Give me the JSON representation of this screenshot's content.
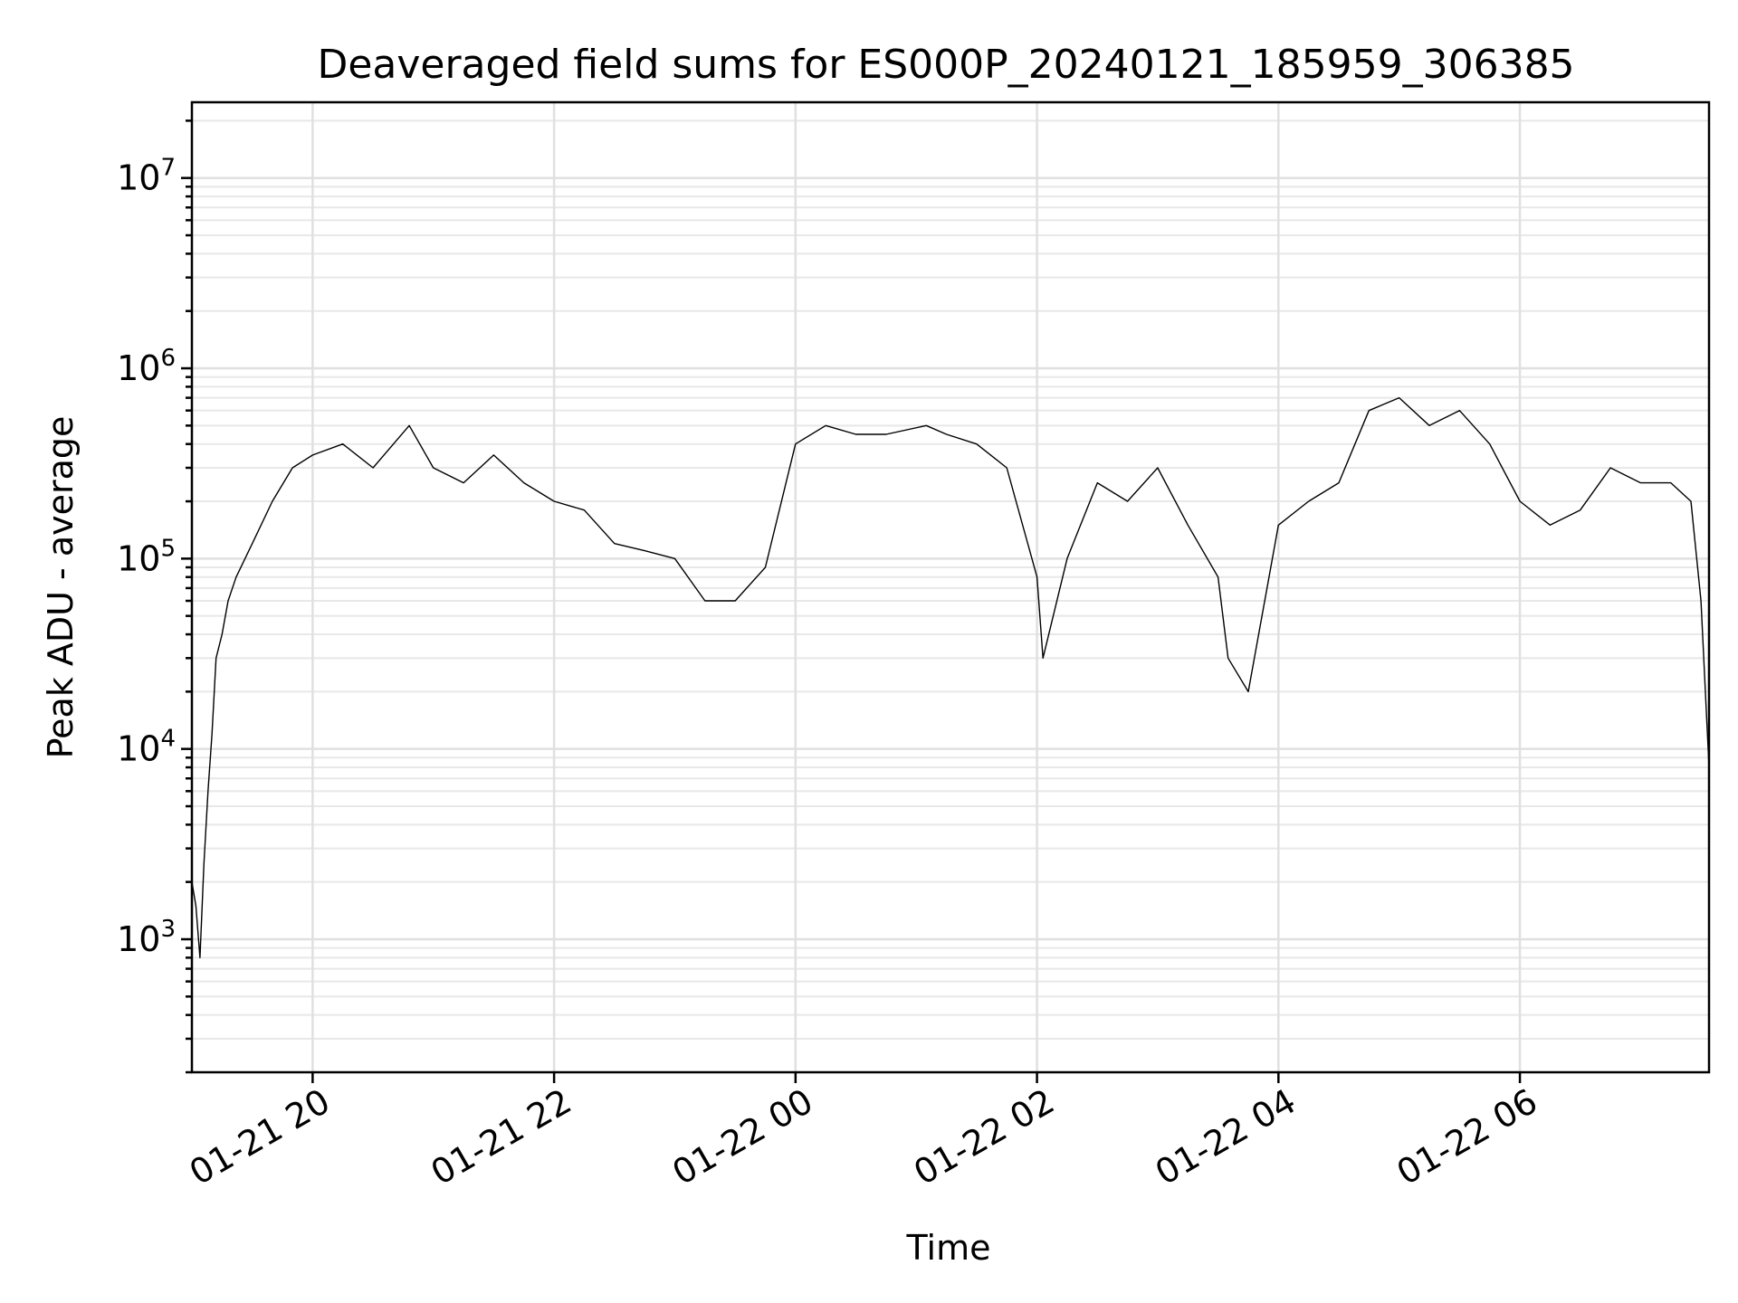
{
  "chart_data": {
    "type": "line",
    "title": "Deaveraged field sums for ES000P_20240121_185959_306385",
    "xlabel": "Time",
    "ylabel": "Peak ADU - average",
    "yscale": "log",
    "ylim": [
      200,
      25000000
    ],
    "xlim": [
      "2024-01-21 19:00",
      "2024-01-22 07:34"
    ],
    "x_ticks": [
      "01-21 20",
      "01-21 22",
      "01-22 00",
      "01-22 02",
      "01-22 04",
      "01-22 06"
    ],
    "x_tick_values": [
      "2024-01-21 20:00",
      "2024-01-21 22:00",
      "2024-01-22 00:00",
      "2024-01-22 02:00",
      "2024-01-22 04:00",
      "2024-01-22 06:00"
    ],
    "y_ticks": [
      {
        "value": 1000,
        "base": "10",
        "exp": "3"
      },
      {
        "value": 10000,
        "base": "10",
        "exp": "4"
      },
      {
        "value": 100000,
        "base": "10",
        "exp": "5"
      },
      {
        "value": 1000000,
        "base": "10",
        "exp": "6"
      },
      {
        "value": 10000000,
        "base": "10",
        "exp": "7"
      }
    ],
    "grid": true,
    "line_color": "#000000",
    "series": [
      {
        "x": [
          "2024-01-21 19:00",
          "2024-01-21 19:02",
          "2024-01-21 19:04",
          "2024-01-21 19:06",
          "2024-01-21 19:08",
          "2024-01-21 19:10",
          "2024-01-21 19:12",
          "2024-01-21 19:15",
          "2024-01-21 19:18",
          "2024-01-21 19:22",
          "2024-01-21 19:30",
          "2024-01-21 19:40",
          "2024-01-21 19:50",
          "2024-01-21 20:00",
          "2024-01-21 20:15",
          "2024-01-21 20:30",
          "2024-01-21 20:48",
          "2024-01-21 21:00",
          "2024-01-21 21:15",
          "2024-01-21 21:30",
          "2024-01-21 21:45",
          "2024-01-21 22:00",
          "2024-01-21 22:15",
          "2024-01-21 22:30",
          "2024-01-21 22:45",
          "2024-01-21 23:00",
          "2024-01-21 23:15",
          "2024-01-21 23:30",
          "2024-01-21 23:45",
          "2024-01-22 00:00",
          "2024-01-22 00:15",
          "2024-01-22 00:30",
          "2024-01-22 00:45",
          "2024-01-22 01:05",
          "2024-01-22 01:15",
          "2024-01-22 01:30",
          "2024-01-22 01:45",
          "2024-01-22 02:00",
          "2024-01-22 02:03",
          "2024-01-22 02:15",
          "2024-01-22 02:30",
          "2024-01-22 02:45",
          "2024-01-22 03:00",
          "2024-01-22 03:15",
          "2024-01-22 03:30",
          "2024-01-22 03:35",
          "2024-01-22 03:45",
          "2024-01-22 04:00",
          "2024-01-22 04:15",
          "2024-01-22 04:30",
          "2024-01-22 04:45",
          "2024-01-22 05:00",
          "2024-01-22 05:15",
          "2024-01-22 05:30",
          "2024-01-22 05:45",
          "2024-01-22 06:00",
          "2024-01-22 06:15",
          "2024-01-22 06:30",
          "2024-01-22 06:45",
          "2024-01-22 07:00",
          "2024-01-22 07:15",
          "2024-01-22 07:25",
          "2024-01-22 07:30",
          "2024-01-22 07:34"
        ],
        "y": [
          2000,
          1500,
          800,
          2500,
          6000,
          12000,
          30000,
          40000,
          60000,
          80000,
          120000,
          200000,
          300000,
          350000,
          400000,
          300000,
          500000,
          300000,
          250000,
          350000,
          250000,
          200000,
          180000,
          120000,
          110000,
          100000,
          60000,
          60000,
          90000,
          400000,
          500000,
          450000,
          450000,
          500000,
          450000,
          400000,
          300000,
          80000,
          30000,
          100000,
          250000,
          200000,
          300000,
          150000,
          80000,
          30000,
          20000,
          150000,
          200000,
          250000,
          600000,
          700000,
          500000,
          600000,
          400000,
          200000,
          150000,
          180000,
          300000,
          250000,
          250000,
          200000,
          60000,
          8000
        ]
      }
    ]
  }
}
